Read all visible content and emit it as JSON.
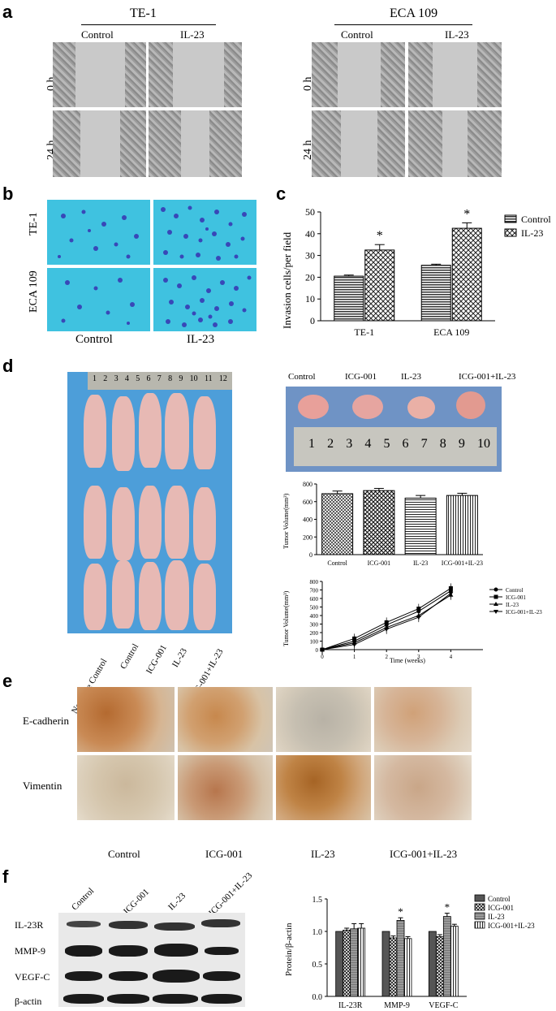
{
  "panels": {
    "a": {
      "label": "a",
      "groups": [
        "TE-1",
        "ECA 109"
      ],
      "columns": [
        "Control",
        "IL-23"
      ],
      "rows": [
        "0 h",
        "24 h"
      ]
    },
    "b": {
      "label": "b",
      "rows": [
        "TE-1",
        "ECA 109"
      ],
      "columns": [
        "Control",
        "IL-23"
      ]
    },
    "c": {
      "label": "c",
      "star": "*"
    },
    "d": {
      "label": "d",
      "ruler_top": [
        "1",
        "2",
        "3",
        "4",
        "5",
        "6",
        "7",
        "8",
        "9",
        "10",
        "11",
        "12"
      ],
      "mice_labels": [
        "Negative Control",
        "Control",
        "ICG-001",
        "IL-23",
        "ICG-001+IL-23"
      ],
      "tumor_labels": [
        "Control",
        "ICG-001",
        "IL-23",
        "ICG-001+IL-23"
      ],
      "ruler_bottom": [
        "1",
        "2",
        "3",
        "4",
        "5",
        "6",
        "7",
        "8",
        "9",
        "10"
      ]
    },
    "e": {
      "label": "e",
      "rows": [
        "E-cadherin",
        "Vimentin"
      ],
      "columns": [
        "Control",
        "ICG-001",
        "IL-23",
        "ICG-001+IL-23"
      ]
    },
    "f": {
      "label": "f",
      "lanes": [
        "Control",
        "ICG-001",
        "IL-23",
        "ICG-001+IL-23"
      ],
      "proteins": [
        "IL-23R",
        "MMP-9",
        "VEGF-C",
        "β-actin"
      ],
      "star": "*"
    }
  },
  "chart_data": [
    {
      "id": "c",
      "type": "bar",
      "categories": [
        "TE-1",
        "ECA 109"
      ],
      "series": [
        {
          "name": "Control",
          "values": [
            20.5,
            25.5
          ],
          "errors": [
            0.5,
            0.5
          ]
        },
        {
          "name": "IL-23",
          "values": [
            32.5,
            42.5
          ],
          "errors": [
            2.5,
            2.5
          ]
        }
      ],
      "ylabel": "Invasion cells/per field",
      "ylim": [
        0,
        50
      ],
      "yticks": [
        0,
        10,
        20,
        30,
        40,
        50
      ],
      "legend": "top-right",
      "annotations": [
        "*",
        "*"
      ]
    },
    {
      "id": "d-bar",
      "type": "bar",
      "categories": [
        "Control",
        "ICG-001",
        "IL-23",
        "ICG-001+IL-23"
      ],
      "values": [
        690,
        725,
        640,
        670
      ],
      "errors": [
        30,
        25,
        30,
        25
      ],
      "ylabel": "Tumor Volume(mm³)",
      "ylim": [
        0,
        800
      ],
      "yticks": [
        0,
        200,
        400,
        600,
        800
      ]
    },
    {
      "id": "d-line",
      "type": "line",
      "x": [
        0,
        1,
        2,
        3,
        4
      ],
      "xlabel": "Time (weeks)",
      "ylabel": "Tumor Volume(mm³)",
      "xlim": [
        0,
        5
      ],
      "ylim": [
        0,
        800
      ],
      "yticks": [
        0,
        100,
        200,
        300,
        400,
        500,
        600,
        700,
        800
      ],
      "xticks": [
        0,
        1,
        2,
        3,
        4
      ],
      "legend": "top-right",
      "series": [
        {
          "name": "Control",
          "values": [
            0,
            100,
            290,
            450,
            690
          ],
          "marker": "circle"
        },
        {
          "name": "ICG-001",
          "values": [
            0,
            130,
            320,
            480,
            720
          ],
          "marker": "square"
        },
        {
          "name": "IL-23",
          "values": [
            0,
            80,
            260,
            400,
            640
          ],
          "marker": "triangle"
        },
        {
          "name": "ICG-001+IL-23",
          "values": [
            0,
            60,
            240,
            380,
            660
          ],
          "marker": "down-triangle"
        }
      ]
    },
    {
      "id": "f",
      "type": "bar",
      "categories": [
        "IL-23R",
        "MMP-9",
        "VEGF-C"
      ],
      "series": [
        {
          "name": "Control",
          "values": [
            1.0,
            1.0,
            1.0
          ],
          "errors": [
            0,
            0,
            0
          ]
        },
        {
          "name": "ICG-001",
          "values": [
            1.02,
            0.9,
            0.92
          ],
          "errors": [
            0.03,
            0.03,
            0.03
          ]
        },
        {
          "name": "IL-23",
          "values": [
            1.04,
            1.17,
            1.23
          ],
          "errors": [
            0.08,
            0.04,
            0.05
          ]
        },
        {
          "name": "ICG-001+IL-23",
          "values": [
            1.05,
            0.89,
            1.08
          ],
          "errors": [
            0.07,
            0.03,
            0.03
          ]
        }
      ],
      "ylabel": "Protein/β-actin",
      "ylim": [
        0,
        1.5
      ],
      "yticks": [
        0.0,
        0.5,
        1.0,
        1.5
      ],
      "legend": "top-right",
      "annotations": [
        "*",
        "*"
      ]
    }
  ]
}
